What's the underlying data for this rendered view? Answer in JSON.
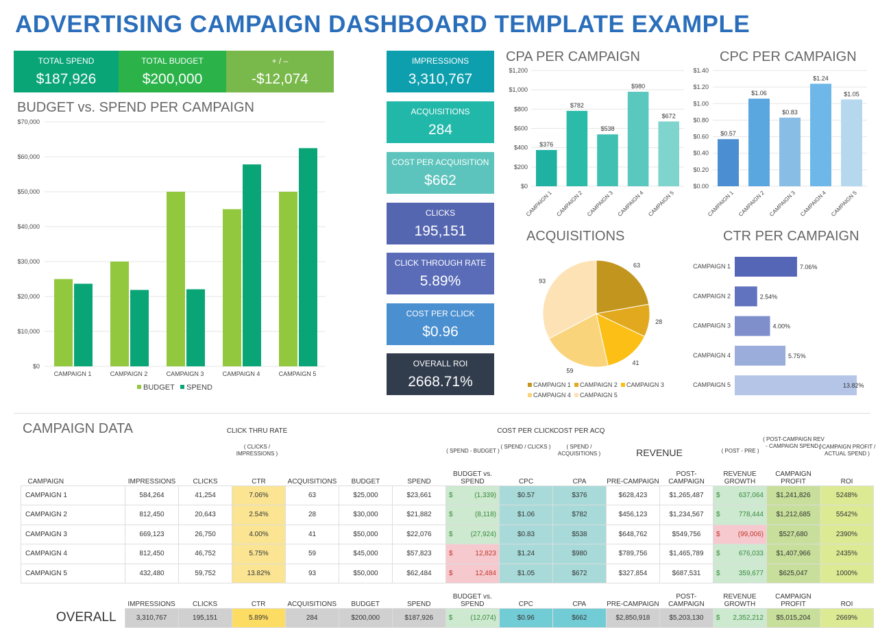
{
  "title": "ADVERTISING CAMPAIGN DASHBOARD TEMPLATE EXAMPLE",
  "kpis": {
    "total_spend": {
      "label": "TOTAL SPEND",
      "value": "$187,926",
      "color": "#0aa577"
    },
    "total_budget": {
      "label": "TOTAL BUDGET",
      "value": "$200,000",
      "color": "#2bb34a"
    },
    "diff": {
      "label": "+ / –",
      "value": "-$12,074",
      "color": "#79b84a"
    },
    "impressions": {
      "label": "IMPRESSIONS",
      "value": "3,310,767",
      "color": "#0e9fae"
    },
    "acquisitions": {
      "label": "ACQUISITIONS",
      "value": "284",
      "color": "#21b8a9"
    },
    "cpa": {
      "label": "COST PER ACQUISITION",
      "value": "$662",
      "color": "#5cc4bc"
    },
    "clicks": {
      "label": "CLICKS",
      "value": "195,151",
      "color": "#5566b0"
    },
    "ctr": {
      "label": "CLICK THROUGH RATE",
      "value": "5.89%",
      "color": "#5a6cb8"
    },
    "cpc": {
      "label": "COST PER CLICK",
      "value": "$0.96",
      "color": "#4a8fd0"
    },
    "roi": {
      "label": "OVERALL ROI",
      "value": "2668.71%",
      "color": "#313c4d"
    }
  },
  "chart_data": [
    {
      "type": "bar",
      "title": "BUDGET vs. SPEND PER CAMPAIGN",
      "categories": [
        "CAMPAIGN 1",
        "CAMPAIGN 2",
        "CAMPAIGN 3",
        "CAMPAIGN 4",
        "CAMPAIGN 5"
      ],
      "series": [
        {
          "name": "BUDGET",
          "values": [
            25000,
            30000,
            50000,
            45000,
            50000
          ],
          "color": "#92c83e"
        },
        {
          "name": "SPEND",
          "values": [
            23661,
            21882,
            22076,
            57823,
            62484
          ],
          "color": "#0aa577"
        }
      ],
      "ylim": [
        0,
        70000
      ],
      "yticks": [
        "$0",
        "$10,000",
        "$20,000",
        "$30,000",
        "$40,000",
        "$50,000",
        "$60,000",
        "$70,000"
      ],
      "legend": "bottom"
    },
    {
      "type": "bar",
      "title": "CPA PER CAMPAIGN",
      "categories": [
        "CAMPAIGN 1",
        "CAMPAIGN 2",
        "CAMPAIGN 3",
        "CAMPAIGN 4",
        "CAMPAIGN 5"
      ],
      "values": [
        376,
        782,
        538,
        980,
        672
      ],
      "labels": [
        "$376",
        "$782",
        "$538",
        "$980",
        "$672"
      ],
      "colors": [
        "#1fb2a3",
        "#2cbaa9",
        "#3fc0b3",
        "#5ac8bf",
        "#80d4ce"
      ],
      "ylim": [
        0,
        1200
      ],
      "yticks": [
        "$0",
        "$200",
        "$400",
        "$600",
        "$800",
        "$1,000",
        "$1,200"
      ]
    },
    {
      "type": "bar",
      "title": "CPC PER CAMPAIGN",
      "categories": [
        "CAMPAIGN 1",
        "CAMPAIGN 2",
        "CAMPAIGN 3",
        "CAMPAIGN 4",
        "CAMPAIGN 5"
      ],
      "values": [
        0.57,
        1.06,
        0.83,
        1.24,
        1.05
      ],
      "labels": [
        "$0.57",
        "$1.06",
        "$0.83",
        "$1.24",
        "$1.05"
      ],
      "colors": [
        "#4b8ed1",
        "#5aa7df",
        "#88bde5",
        "#6db8e8",
        "#b5d8ee"
      ],
      "ylim": [
        0,
        1.4
      ],
      "yticks": [
        "$0.00",
        "$0.20",
        "$0.40",
        "$0.60",
        "$0.80",
        "$1.00",
        "$1.20",
        "$1.40"
      ]
    },
    {
      "type": "pie",
      "title": "ACQUISITIONS",
      "categories": [
        "CAMPAIGN 1",
        "CAMPAIGN 2",
        "CAMPAIGN 3",
        "CAMPAIGN 4",
        "CAMPAIGN 5"
      ],
      "values": [
        63,
        28,
        41,
        59,
        93
      ],
      "colors": [
        "#c2961e",
        "#e2a91f",
        "#fbbf16",
        "#fad47a",
        "#fde2b6"
      ],
      "legend": "bottom"
    },
    {
      "type": "bar",
      "orientation": "horizontal",
      "title": "CTR PER CAMPAIGN",
      "categories": [
        "CAMPAIGN 1",
        "CAMPAIGN 2",
        "CAMPAIGN 3",
        "CAMPAIGN 4",
        "CAMPAIGN 5"
      ],
      "values": [
        7.06,
        2.54,
        4.0,
        5.75,
        13.82
      ],
      "labels": [
        "7.06%",
        "2.54%",
        "4.00%",
        "5.75%",
        "13.82%"
      ],
      "colors": [
        "#5666b6",
        "#6172be",
        "#7e8fcc",
        "#9aaddb",
        "#b4c5e8"
      ]
    }
  ],
  "table": {
    "title": "CAMPAIGN DATA",
    "notes": {
      "ctr_title": "CLICK THRU RATE",
      "ctr": "( CLICKS / IMPRESSIONS )",
      "bvs": "( SPEND - BUDGET )",
      "cpc_title": "COST PER CLICK",
      "cpc": "( SPEND / CLICKS )",
      "cpa_title": "COST PER ACQ",
      "cpa": "( SPEND / ACQUISITIONS )",
      "revenue": "REVENUE",
      "growth": "( POST - PRE )",
      "profit": "( POST-CAMPAIGN REV - CAMPAIGN SPEND )",
      "roi": "( CAMPAIGN PROFIT / ACTUAL SPEND )"
    },
    "headers": [
      "CAMPAIGN",
      "IMPRESSIONS",
      "CLICKS",
      "CTR",
      "ACQUISITIONS",
      "BUDGET",
      "SPEND",
      "BUDGET vs. SPEND",
      "CPC",
      "CPA",
      "PRE-CAMPAIGN",
      "POST-CAMPAIGN",
      "REVENUE GROWTH",
      "CAMPAIGN PROFIT",
      "ROI"
    ],
    "rows": [
      [
        "CAMPAIGN 1",
        "584,264",
        "41,254",
        "7.06%",
        "63",
        "$25,000",
        "$23,661",
        "(1,339)",
        "$0.57",
        "$376",
        "$628,423",
        "$1,265,487",
        "637,064",
        "$1,241,826",
        "5248%"
      ],
      [
        "CAMPAIGN 2",
        "812,450",
        "20,643",
        "2.54%",
        "28",
        "$30,000",
        "$21,882",
        "(8,118)",
        "$1.06",
        "$782",
        "$456,123",
        "$1,234,567",
        "778,444",
        "$1,212,685",
        "5542%"
      ],
      [
        "CAMPAIGN 3",
        "669,123",
        "26,750",
        "4.00%",
        "41",
        "$50,000",
        "$22,076",
        "(27,924)",
        "$0.83",
        "$538",
        "$648,762",
        "$549,756",
        "(99,006)",
        "$527,680",
        "2390%"
      ],
      [
        "CAMPAIGN 4",
        "812,450",
        "46,752",
        "5.75%",
        "59",
        "$45,000",
        "$57,823",
        "12,823",
        "$1.24",
        "$980",
        "$789,756",
        "$1,465,789",
        "676,033",
        "$1,407,966",
        "2435%"
      ],
      [
        "CAMPAIGN 5",
        "432,480",
        "59,752",
        "13.82%",
        "93",
        "$50,000",
        "$62,484",
        "12,484",
        "$1.05",
        "$672",
        "$327,854",
        "$687,531",
        "359,677",
        "$625,047",
        "1000%"
      ]
    ],
    "overall": [
      "OVERALL",
      "3,310,767",
      "195,151",
      "5.89%",
      "284",
      "$200,000",
      "$187,926",
      "(12,074)",
      "$0.96",
      "$662",
      "$2,850,918",
      "$5,203,130",
      "2,352,212",
      "$5,015,204",
      "2669%"
    ],
    "currency": "$"
  }
}
